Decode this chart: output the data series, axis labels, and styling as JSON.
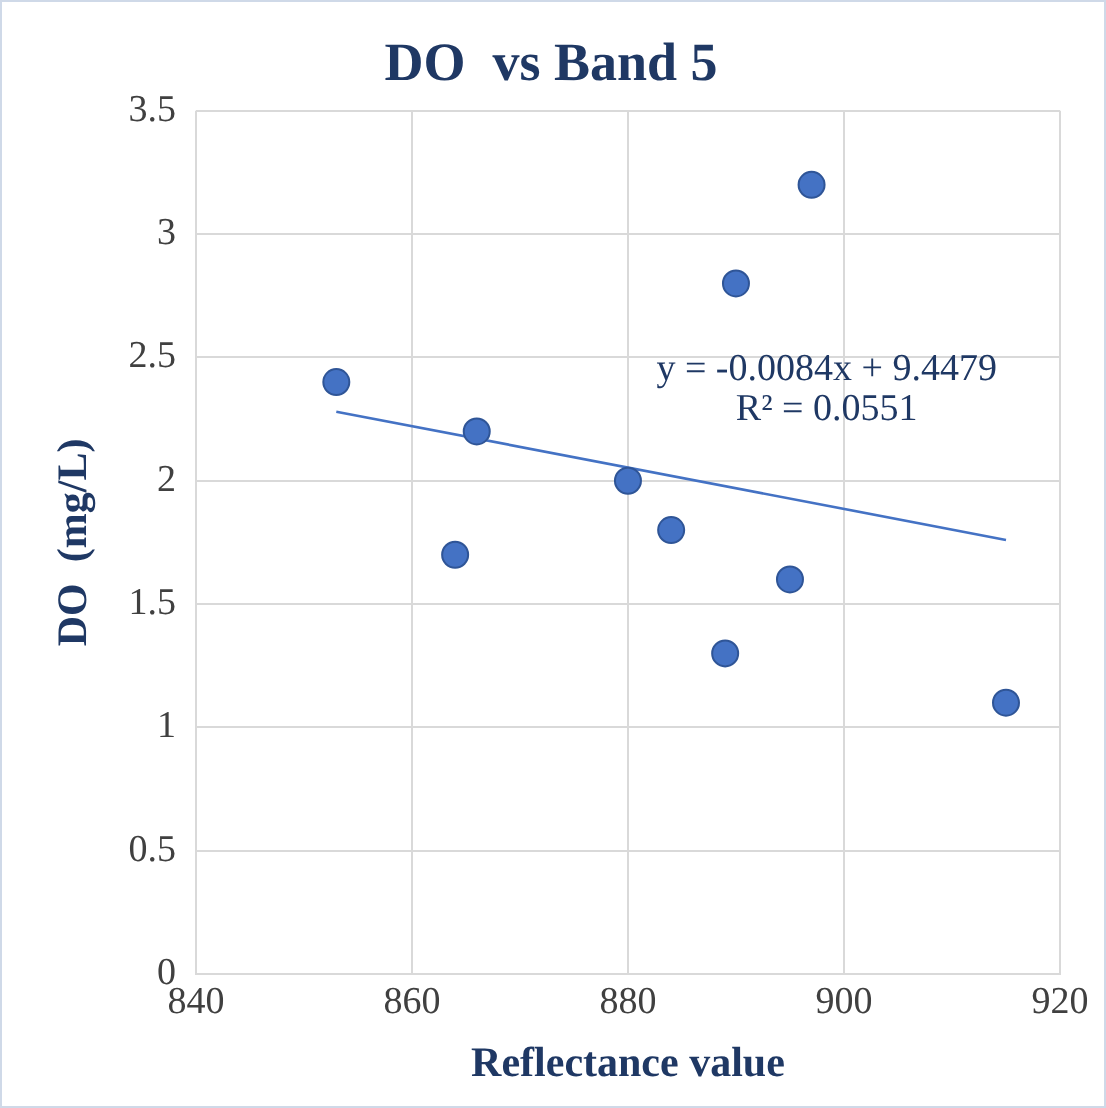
{
  "chart_data": {
    "type": "scatter",
    "title": "DO  vs Band 5",
    "xlabel": "Reflectance value",
    "ylabel": "DO  (mg/L)",
    "x": [
      853,
      864,
      866,
      880,
      884,
      889,
      890,
      895,
      897,
      915
    ],
    "series": [
      {
        "color": "#4472c4",
        "marker": "circle",
        "values": [
          2.4,
          1.7,
          2.2,
          2.0,
          1.8,
          1.3,
          2.8,
          1.6,
          3.2,
          1.1
        ]
      },
      {
        "type": "line",
        "color": "#4472c4",
        "marker": "none",
        "x": [
          853,
          915
        ],
        "values": [
          2.28,
          1.76
        ]
      }
    ],
    "xlim": [
      840,
      920
    ],
    "xticks": [
      840,
      860,
      880,
      900,
      920
    ],
    "ylim": [
      0,
      3.5
    ],
    "yticks": [
      0,
      0.5,
      1,
      1.5,
      2,
      2.5,
      3,
      3.5
    ],
    "grid": true,
    "legend": false,
    "annotations": [
      "y = -0.0084x + 9.4479",
      "R² = 0.0551"
    ]
  }
}
